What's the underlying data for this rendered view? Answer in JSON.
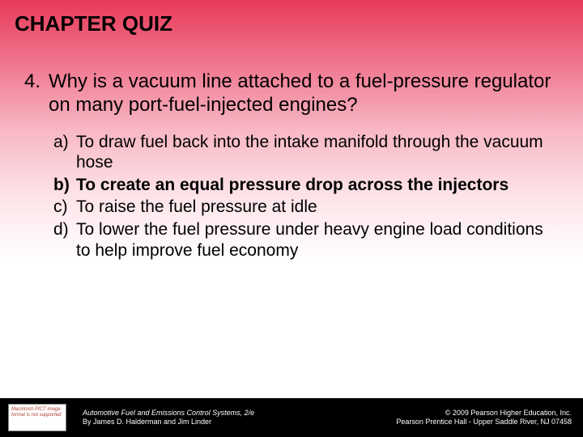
{
  "title": {
    "text": "CHAPTER QUIZ",
    "fontsize": 26
  },
  "question": {
    "number": "4.",
    "text": "Why is a vacuum line attached to a fuel-pressure regulator on many port-fuel-injected engines?",
    "fontsize": 24,
    "lineheight": 1.2
  },
  "options": {
    "fontsize": 21,
    "lineheight": 1.22,
    "items": [
      {
        "letter": "a)",
        "text": "To draw fuel back into the intake manifold through the vacuum hose",
        "correct": false
      },
      {
        "letter": "b)",
        "text": "To create an equal pressure drop across the injectors",
        "correct": true
      },
      {
        "letter": "c)",
        "text": "To raise the fuel pressure at idle",
        "correct": false
      },
      {
        "letter": "d)",
        "text": "To lower the fuel pressure under heavy engine load conditions to help improve fuel economy",
        "correct": false
      }
    ]
  },
  "footer": {
    "fontsize": 9,
    "icon_text": "Macintosh PICT image format is not supported",
    "left_line1": "Automotive Fuel and Emissions Control Systems, 2/e",
    "left_line2": "By James D. Halderman and Jim Linder",
    "right_line1": "© 2009 Pearson Higher Education, Inc.",
    "right_line2": "Pearson Prentice Hall - Upper Saddle River, NJ 07458"
  }
}
